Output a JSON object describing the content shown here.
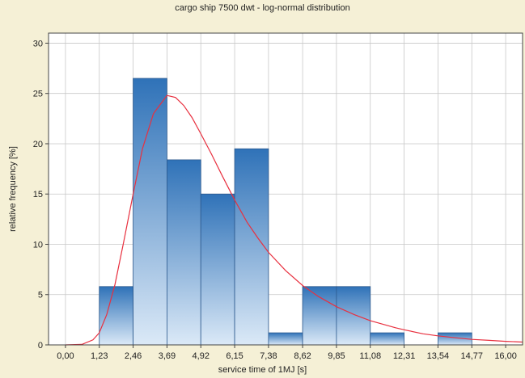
{
  "chart_data": {
    "type": "bar",
    "title": "cargo ship 7500 dwt - log-normal distribution",
    "xlabel": "service time of 1MJ [s]",
    "ylabel": "relative frequency [%]",
    "xlim": [
      -0.615,
      16.615
    ],
    "ylim": [
      0,
      31
    ],
    "x_ticks": [
      "0,00",
      "1,23",
      "2,46",
      "3,69",
      "4,92",
      "6,15",
      "7,38",
      "8,62",
      "9,85",
      "11,08",
      "12,31",
      "13,54",
      "14,77",
      "16,00"
    ],
    "y_ticks": [
      "0",
      "5",
      "10",
      "15",
      "20",
      "25",
      "30"
    ],
    "bins": [
      {
        "from": 1.23,
        "to": 2.46,
        "value": 5.8
      },
      {
        "from": 2.46,
        "to": 3.69,
        "value": 26.5
      },
      {
        "from": 3.69,
        "to": 4.92,
        "value": 18.4
      },
      {
        "from": 4.92,
        "to": 6.15,
        "value": 15.0
      },
      {
        "from": 6.15,
        "to": 7.38,
        "value": 19.5
      },
      {
        "from": 7.38,
        "to": 8.62,
        "value": 1.2
      },
      {
        "from": 8.62,
        "to": 9.85,
        "value": 5.8
      },
      {
        "from": 9.85,
        "to": 11.08,
        "value": 5.8
      },
      {
        "from": 11.08,
        "to": 12.31,
        "value": 1.2
      },
      {
        "from": 12.31,
        "to": 13.54,
        "value": 0
      },
      {
        "from": 13.54,
        "to": 14.77,
        "value": 1.2
      }
    ],
    "fit_curve": {
      "type": "log-normal",
      "x": [
        0.0,
        0.6,
        1.0,
        1.23,
        1.5,
        1.8,
        2.1,
        2.46,
        2.8,
        3.2,
        3.69,
        4.0,
        4.3,
        4.6,
        4.92,
        5.3,
        5.7,
        6.15,
        6.6,
        7.0,
        7.38,
        8.0,
        8.62,
        9.2,
        9.85,
        10.5,
        11.08,
        12.0,
        12.31,
        13.0,
        13.54,
        14.2,
        14.77,
        15.4,
        16.0,
        16.6
      ],
      "y": [
        0.0,
        0.05,
        0.5,
        1.2,
        3.0,
        6.0,
        10.0,
        15.0,
        19.5,
        23.0,
        24.8,
        24.6,
        23.8,
        22.6,
        21.0,
        19.0,
        16.8,
        14.4,
        12.2,
        10.6,
        9.2,
        7.4,
        5.9,
        4.8,
        3.8,
        3.0,
        2.4,
        1.7,
        1.5,
        1.1,
        0.9,
        0.7,
        0.55,
        0.45,
        0.35,
        0.28
      ]
    },
    "grid": true,
    "colors": {
      "background": "#f5f0d6",
      "plot_background": "#ffffff",
      "bar_top": "#2f72b8",
      "bar_bottom": "#dbe9f7",
      "bar_edge": "#2d5a8e",
      "curve": "#e8303f",
      "grid": "#c8c8c8"
    }
  }
}
